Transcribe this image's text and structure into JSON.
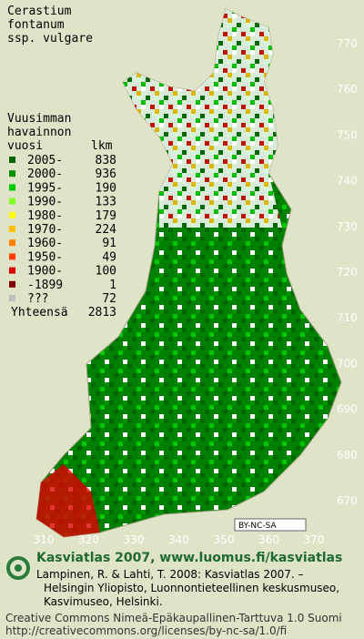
{
  "title": [
    "Cerastium",
    "fontanum",
    "ssp. vulgare"
  ],
  "legend": {
    "header": [
      "Vuusimman",
      "havainnon",
      "vuosi"
    ],
    "count_header": "lkm",
    "entries": [
      {
        "label": "2005-",
        "count": "838",
        "color": "#006400"
      },
      {
        "label": "2000-",
        "count": "936",
        "color": "#009000"
      },
      {
        "label": "1995-",
        "count": "190",
        "color": "#00c800"
      },
      {
        "label": "1990-",
        "count": "133",
        "color": "#80ff20"
      },
      {
        "label": "1980-",
        "count": "179",
        "color": "#ffff00"
      },
      {
        "label": "1970-",
        "count": "224",
        "color": "#ffc000"
      },
      {
        "label": "1960-",
        "count": "91",
        "color": "#ff8000"
      },
      {
        "label": "1950-",
        "count": "49",
        "color": "#ff4000"
      },
      {
        "label": "1900-",
        "count": "100",
        "color": "#e00000"
      },
      {
        "label": "-1899",
        "count": "1",
        "color": "#800000"
      },
      {
        "label": "???",
        "count": "72",
        "color": "#c0c0c0"
      }
    ],
    "total_label": "Yhteensä",
    "total": "2813"
  },
  "grid_labels_y": [
    "770",
    "760",
    "750",
    "740",
    "730",
    "720",
    "710",
    "700",
    "690",
    "680",
    "670"
  ],
  "grid_labels_x": [
    "310",
    "320",
    "330",
    "340",
    "350",
    "360",
    "370"
  ],
  "badge": "BY-NC-SA",
  "footer": {
    "heading": "Kasviatlas 2007, www.luomus.fi/kasviatlas",
    "citation": [
      "Lampinen, R. & Lahti, T. 2008: Kasviatlas 2007. –",
      "Helsingin Yliopisto, Luonnontieteellinen keskusmuseo,",
      "Kasvimuseo, Helsinki."
    ],
    "license": [
      "Creative Commons Nimeä-Epäkaupallinen-Tarttuva 1.0 Suomi",
      "http://creativecommons.org/licenses/by-nc-sa/1.0/fi"
    ]
  }
}
